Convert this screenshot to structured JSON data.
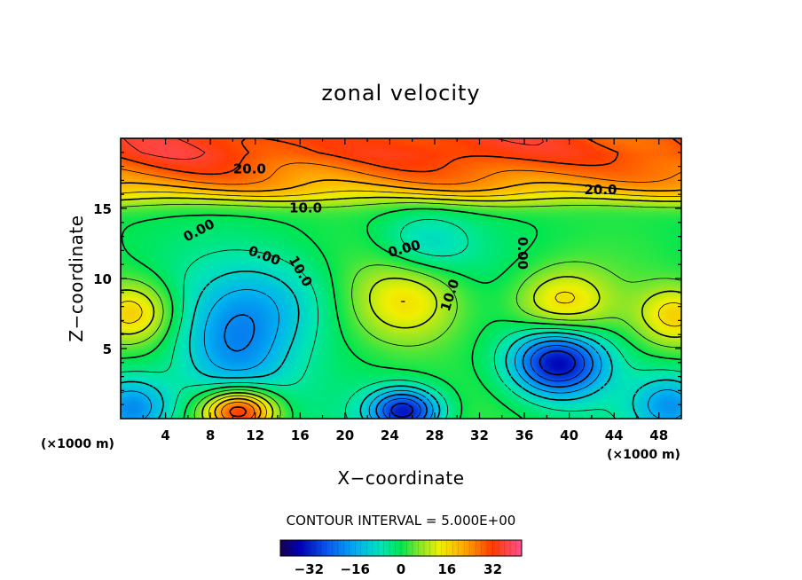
{
  "chart_data": {
    "type": "heatmap",
    "title": "zonal velocity",
    "xlabel": "X−coordinate",
    "ylabel": "Z−coordinate",
    "x_unit_note": "(×1000 m)",
    "z_unit_note": "(×1000 m)",
    "xlim": [
      0,
      50
    ],
    "ylim": [
      0,
      20
    ],
    "x_ticks": [
      4,
      8,
      12,
      16,
      20,
      24,
      28,
      32,
      36,
      40,
      44,
      48
    ],
    "y_ticks": [
      5,
      10,
      15
    ],
    "contour_interval_text": "CONTOUR INTERVAL = 5.000E+00",
    "colorbar": {
      "vmin": -42,
      "vmax": 42,
      "ticks": [
        -32,
        -16,
        0,
        16,
        32
      ],
      "tick_labels": [
        "−32",
        "−16",
        "0",
        "16",
        "32"
      ]
    },
    "contour_labels": [
      {
        "text": "20.0",
        "x": 11.5,
        "z": 17.8,
        "rot": 0
      },
      {
        "text": "20.0",
        "x": 42.8,
        "z": 16.3,
        "rot": 0
      },
      {
        "text": "10.0",
        "x": 16.5,
        "z": 15.0,
        "rot": 0
      },
      {
        "text": "0.00",
        "x": 7.0,
        "z": 13.4,
        "rot": 28
      },
      {
        "text": "0.00",
        "x": 12.8,
        "z": 11.6,
        "rot": -20
      },
      {
        "text": "10.0",
        "x": 16.0,
        "z": 10.5,
        "rot": -60
      },
      {
        "text": "0.00",
        "x": 25.3,
        "z": 12.1,
        "rot": 15
      },
      {
        "text": "0.00",
        "x": 35.8,
        "z": 11.8,
        "rot": -90
      },
      {
        "text": "10.0",
        "x": 29.4,
        "z": 8.8,
        "rot": 72
      }
    ],
    "field_features": [
      {
        "kind": "jet",
        "x": 25,
        "z": 18.3,
        "value": 32
      },
      {
        "kind": "max",
        "x": 25.5,
        "z": 8.6,
        "value": 16
      },
      {
        "kind": "max",
        "x": 39.3,
        "z": 8.3,
        "value": 16
      },
      {
        "kind": "max",
        "x": 1,
        "z": 7.6,
        "value": 18
      },
      {
        "kind": "max",
        "x": 49.5,
        "z": 7.4,
        "value": 17
      },
      {
        "kind": "max",
        "x": 10.5,
        "z": 0.6,
        "value": 38
      },
      {
        "kind": "min",
        "x": 10,
        "z": 4.8,
        "value": -18
      },
      {
        "kind": "min",
        "x": 38.9,
        "z": 4.1,
        "value": -35
      },
      {
        "kind": "min",
        "x": 25.2,
        "z": 0.6,
        "value": -33
      },
      {
        "kind": "min",
        "x": 1,
        "z": 0.8,
        "value": -20
      },
      {
        "kind": "min",
        "x": 49,
        "z": 1.0,
        "value": -18
      },
      {
        "kind": "min",
        "x": 27,
        "z": 12.4,
        "value": -10
      }
    ]
  }
}
